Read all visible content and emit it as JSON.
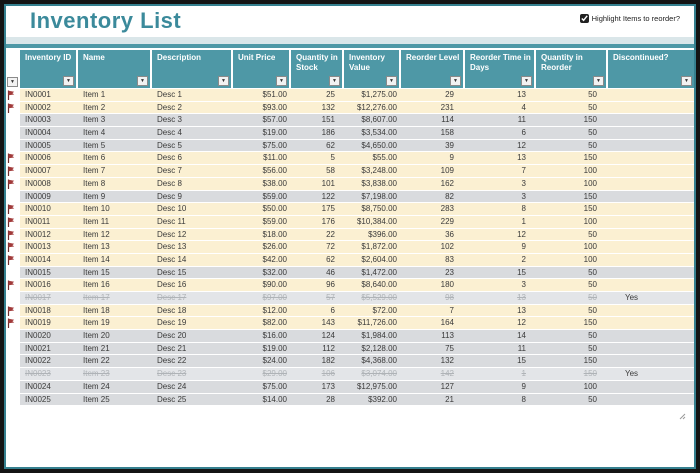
{
  "app": {
    "title": "Inventory List",
    "checkbox_label": "Highlight Items to reorder?",
    "checkbox_checked": true
  },
  "icons": {
    "filter_dropdown": "▼",
    "flag": "reorder-flag"
  },
  "colors": {
    "border_teal": "#35808F",
    "title_teal": "#3B8A9B",
    "header_teal": "#4E98A6",
    "pale_band": "#DAE6E9",
    "cream_row": "#FBF0D2",
    "gray_row": "#D9DBDE",
    "struck_bg": "#E3E5E8",
    "struck_text": "#AFB3B7",
    "row_text": "#3A3A3A",
    "flag_red": "#A13A3A"
  },
  "table": {
    "columns": [
      {
        "key": "id",
        "label": "Inventory ID"
      },
      {
        "key": "name",
        "label": "Name"
      },
      {
        "key": "desc",
        "label": "Description"
      },
      {
        "key": "price",
        "label": "Unit Price"
      },
      {
        "key": "qty",
        "label": "Quantity in Stock"
      },
      {
        "key": "value",
        "label": "Inventory Value"
      },
      {
        "key": "reorder_level",
        "label": "Reorder Level"
      },
      {
        "key": "reorder_time",
        "label": "Reorder Time in Days"
      },
      {
        "key": "qty_reorder",
        "label": "Quantity in Reorder"
      },
      {
        "key": "discontinued",
        "label": "Discontinued?"
      }
    ],
    "rows": [
      {
        "id": "IN0001",
        "name": "Item 1",
        "desc": "Desc 1",
        "price": "$51.00",
        "qty": "25",
        "value": "$1,275.00",
        "reorder_level": "29",
        "reorder_time": "13",
        "qty_reorder": "50",
        "discontinued": "",
        "flagged": true,
        "state": "highlight"
      },
      {
        "id": "IN0002",
        "name": "Item 2",
        "desc": "Desc 2",
        "price": "$93.00",
        "qty": "132",
        "value": "$12,276.00",
        "reorder_level": "231",
        "reorder_time": "4",
        "qty_reorder": "50",
        "discontinued": "",
        "flagged": true,
        "state": "highlight"
      },
      {
        "id": "IN0003",
        "name": "Item 3",
        "desc": "Desc 3",
        "price": "$57.00",
        "qty": "151",
        "value": "$8,607.00",
        "reorder_level": "114",
        "reorder_time": "11",
        "qty_reorder": "150",
        "discontinued": "",
        "flagged": false,
        "state": "normal"
      },
      {
        "id": "IN0004",
        "name": "Item 4",
        "desc": "Desc 4",
        "price": "$19.00",
        "qty": "186",
        "value": "$3,534.00",
        "reorder_level": "158",
        "reorder_time": "6",
        "qty_reorder": "50",
        "discontinued": "",
        "flagged": false,
        "state": "normal"
      },
      {
        "id": "IN0005",
        "name": "Item 5",
        "desc": "Desc 5",
        "price": "$75.00",
        "qty": "62",
        "value": "$4,650.00",
        "reorder_level": "39",
        "reorder_time": "12",
        "qty_reorder": "50",
        "discontinued": "",
        "flagged": false,
        "state": "normal"
      },
      {
        "id": "IN0006",
        "name": "Item 6",
        "desc": "Desc 6",
        "price": "$11.00",
        "qty": "5",
        "value": "$55.00",
        "reorder_level": "9",
        "reorder_time": "13",
        "qty_reorder": "150",
        "discontinued": "",
        "flagged": true,
        "state": "highlight"
      },
      {
        "id": "IN0007",
        "name": "Item 7",
        "desc": "Desc 7",
        "price": "$56.00",
        "qty": "58",
        "value": "$3,248.00",
        "reorder_level": "109",
        "reorder_time": "7",
        "qty_reorder": "100",
        "discontinued": "",
        "flagged": true,
        "state": "highlight"
      },
      {
        "id": "IN0008",
        "name": "Item 8",
        "desc": "Desc 8",
        "price": "$38.00",
        "qty": "101",
        "value": "$3,838.00",
        "reorder_level": "162",
        "reorder_time": "3",
        "qty_reorder": "100",
        "discontinued": "",
        "flagged": true,
        "state": "highlight"
      },
      {
        "id": "IN0009",
        "name": "Item 9",
        "desc": "Desc 9",
        "price": "$59.00",
        "qty": "122",
        "value": "$7,198.00",
        "reorder_level": "82",
        "reorder_time": "3",
        "qty_reorder": "150",
        "discontinued": "",
        "flagged": false,
        "state": "normal"
      },
      {
        "id": "IN0010",
        "name": "Item 10",
        "desc": "Desc 10",
        "price": "$50.00",
        "qty": "175",
        "value": "$8,750.00",
        "reorder_level": "283",
        "reorder_time": "8",
        "qty_reorder": "150",
        "discontinued": "",
        "flagged": true,
        "state": "highlight"
      },
      {
        "id": "IN0011",
        "name": "Item 11",
        "desc": "Desc 11",
        "price": "$59.00",
        "qty": "176",
        "value": "$10,384.00",
        "reorder_level": "229",
        "reorder_time": "1",
        "qty_reorder": "100",
        "discontinued": "",
        "flagged": true,
        "state": "highlight"
      },
      {
        "id": "IN0012",
        "name": "Item 12",
        "desc": "Desc 12",
        "price": "$18.00",
        "qty": "22",
        "value": "$396.00",
        "reorder_level": "36",
        "reorder_time": "12",
        "qty_reorder": "50",
        "discontinued": "",
        "flagged": true,
        "state": "highlight"
      },
      {
        "id": "IN0013",
        "name": "Item 13",
        "desc": "Desc 13",
        "price": "$26.00",
        "qty": "72",
        "value": "$1,872.00",
        "reorder_level": "102",
        "reorder_time": "9",
        "qty_reorder": "100",
        "discontinued": "",
        "flagged": true,
        "state": "highlight"
      },
      {
        "id": "IN0014",
        "name": "Item 14",
        "desc": "Desc 14",
        "price": "$42.00",
        "qty": "62",
        "value": "$2,604.00",
        "reorder_level": "83",
        "reorder_time": "2",
        "qty_reorder": "100",
        "discontinued": "",
        "flagged": true,
        "state": "highlight"
      },
      {
        "id": "IN0015",
        "name": "Item 15",
        "desc": "Desc 15",
        "price": "$32.00",
        "qty": "46",
        "value": "$1,472.00",
        "reorder_level": "23",
        "reorder_time": "15",
        "qty_reorder": "50",
        "discontinued": "",
        "flagged": false,
        "state": "normal"
      },
      {
        "id": "IN0016",
        "name": "Item 16",
        "desc": "Desc 16",
        "price": "$90.00",
        "qty": "96",
        "value": "$8,640.00",
        "reorder_level": "180",
        "reorder_time": "3",
        "qty_reorder": "50",
        "discontinued": "",
        "flagged": true,
        "state": "highlight"
      },
      {
        "id": "IN0017",
        "name": "Item 17",
        "desc": "Desc 17",
        "price": "$97.00",
        "qty": "57",
        "value": "$5,529.00",
        "reorder_level": "98",
        "reorder_time": "13",
        "qty_reorder": "50",
        "discontinued": "Yes",
        "flagged": false,
        "state": "discontinued"
      },
      {
        "id": "IN0018",
        "name": "Item 18",
        "desc": "Desc 18",
        "price": "$12.00",
        "qty": "6",
        "value": "$72.00",
        "reorder_level": "7",
        "reorder_time": "13",
        "qty_reorder": "50",
        "discontinued": "",
        "flagged": true,
        "state": "highlight"
      },
      {
        "id": "IN0019",
        "name": "Item 19",
        "desc": "Desc 19",
        "price": "$82.00",
        "qty": "143",
        "value": "$11,726.00",
        "reorder_level": "164",
        "reorder_time": "12",
        "qty_reorder": "150",
        "discontinued": "",
        "flagged": true,
        "state": "highlight"
      },
      {
        "id": "IN0020",
        "name": "Item 20",
        "desc": "Desc 20",
        "price": "$16.00",
        "qty": "124",
        "value": "$1,984.00",
        "reorder_level": "113",
        "reorder_time": "14",
        "qty_reorder": "50",
        "discontinued": "",
        "flagged": false,
        "state": "normal"
      },
      {
        "id": "IN0021",
        "name": "Item 21",
        "desc": "Desc 21",
        "price": "$19.00",
        "qty": "112",
        "value": "$2,128.00",
        "reorder_level": "75",
        "reorder_time": "11",
        "qty_reorder": "50",
        "discontinued": "",
        "flagged": false,
        "state": "normal"
      },
      {
        "id": "IN0022",
        "name": "Item 22",
        "desc": "Desc 22",
        "price": "$24.00",
        "qty": "182",
        "value": "$4,368.00",
        "reorder_level": "132",
        "reorder_time": "15",
        "qty_reorder": "150",
        "discontinued": "",
        "flagged": false,
        "state": "normal"
      },
      {
        "id": "IN0023",
        "name": "Item 23",
        "desc": "Desc 23",
        "price": "$29.00",
        "qty": "106",
        "value": "$3,074.00",
        "reorder_level": "142",
        "reorder_time": "1",
        "qty_reorder": "150",
        "discontinued": "Yes",
        "flagged": false,
        "state": "discontinued"
      },
      {
        "id": "IN0024",
        "name": "Item 24",
        "desc": "Desc 24",
        "price": "$75.00",
        "qty": "173",
        "value": "$12,975.00",
        "reorder_level": "127",
        "reorder_time": "9",
        "qty_reorder": "100",
        "discontinued": "",
        "flagged": false,
        "state": "normal"
      },
      {
        "id": "IN0025",
        "name": "Item 25",
        "desc": "Desc 25",
        "price": "$14.00",
        "qty": "28",
        "value": "$392.00",
        "reorder_level": "21",
        "reorder_time": "8",
        "qty_reorder": "50",
        "discontinued": "",
        "flagged": false,
        "state": "normal"
      }
    ]
  }
}
